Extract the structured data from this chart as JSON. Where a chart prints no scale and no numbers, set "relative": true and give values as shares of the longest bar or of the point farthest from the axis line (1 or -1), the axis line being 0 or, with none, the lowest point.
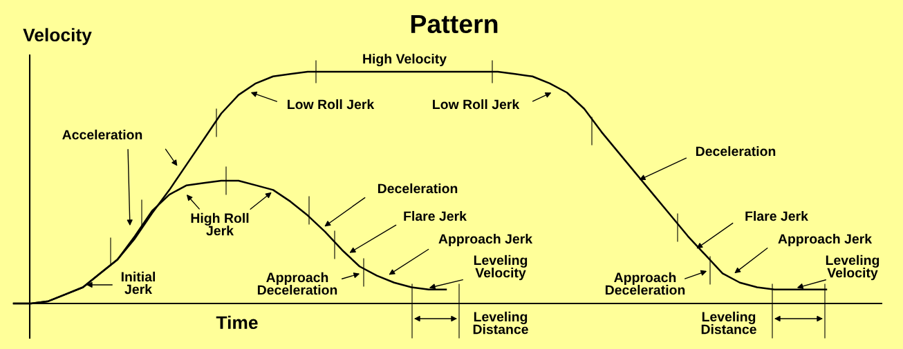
{
  "chart_data": {
    "type": "line",
    "title": "Pattern",
    "xlabel": "Time",
    "ylabel": "Velocity",
    "relative": true,
    "categories": [
      null,
      null,
      null,
      null,
      null,
      null,
      null,
      null,
      null,
      null,
      null,
      null,
      null,
      null,
      null,
      null,
      null,
      null,
      null,
      null,
      null,
      null,
      null,
      null,
      null,
      null,
      null,
      null,
      null,
      null,
      null,
      null,
      null,
      null,
      null,
      null,
      null,
      null,
      null,
      null,
      null,
      null,
      null,
      null,
      null,
      null,
      null,
      null
    ],
    "series": [
      {
        "color": "#000000",
        "values": [
          0,
          0,
          0.01,
          0.04,
          0.07,
          0.13,
          0.19,
          0.28,
          0.39,
          0.49,
          0.6,
          0.71,
          0.82,
          0.9,
          0.95,
          0.98,
          0.99,
          1,
          1,
          1,
          1,
          1,
          1,
          1,
          1,
          1,
          1,
          1,
          1,
          0.99,
          0.98,
          0.95,
          0.91,
          0.84,
          0.74,
          0.65,
          0.56,
          0.47,
          0.38,
          0.29,
          0.21,
          0.13,
          0.09,
          0.07,
          0.06,
          0.06,
          0.06,
          0.06
        ]
      },
      {
        "color": "#000000",
        "values": [
          0,
          0,
          0.01,
          0.04,
          0.07,
          0.13,
          0.19,
          0.29,
          0.4,
          0.47,
          0.51,
          0.52,
          0.53,
          0.53,
          0.51,
          0.49,
          0.44,
          0.38,
          0.31,
          0.23,
          0.16,
          0.12,
          0.09,
          0.07,
          0.06,
          0.06,
          null,
          null,
          null,
          null,
          null,
          null,
          null,
          null,
          null,
          null,
          null,
          null,
          null,
          null,
          null,
          null,
          null,
          null,
          null,
          null,
          null,
          null
        ]
      }
    ],
    "annotations": [
      "Acceleration",
      "Initial\nJerk",
      "High Roll\nJerk",
      "Low Roll Jerk",
      "High Velocity",
      "Low Roll Jerk",
      "Deceleration",
      "Flare Jerk",
      "Approach\nDeceleration",
      "Approach Jerk",
      "Leveling\nVelocity",
      "Leveling\nDistance",
      "Deceleration",
      "Flare Jerk",
      "Approach\nDeceleration",
      "Approach Jerk",
      "Leveling\nVelocity",
      "Leveling\nDistance"
    ],
    "legend": false,
    "marker": "none",
    "line_style": "solid"
  }
}
